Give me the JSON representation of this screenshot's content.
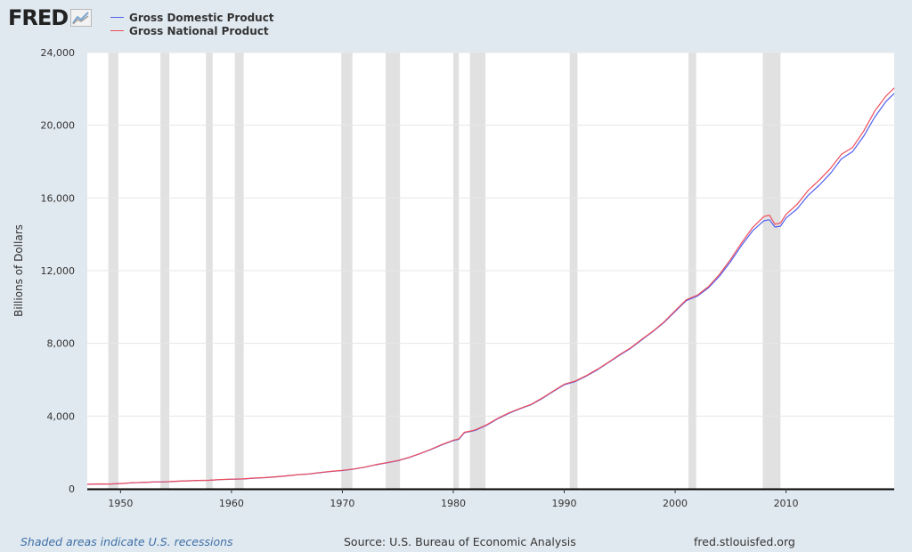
{
  "logo": {
    "text": "FRED",
    "icon": "line-chart-icon"
  },
  "legend": [
    {
      "name": "Gross Domestic Product",
      "color": "#4f5ff0"
    },
    {
      "name": "Gross National Product",
      "color": "#ef4d5a"
    }
  ],
  "footer": {
    "note": "Shaded areas indicate U.S. recessions",
    "source": "Source: U.S. Bureau of Economic Analysis",
    "site": "fred.stlouisfed.org"
  },
  "chart_data": {
    "type": "line",
    "title": "",
    "xlabel": "",
    "ylabel": "Billions of Dollars",
    "xlim": [
      1947,
      2019.75
    ],
    "ylim": [
      0,
      24000
    ],
    "xticks": [
      1950,
      1960,
      1970,
      1980,
      1990,
      2000,
      2010
    ],
    "xtick_labels": [
      "1950",
      "1960",
      "1970",
      "1980",
      "1990",
      "2000",
      "2010"
    ],
    "yticks": [
      0,
      4000,
      8000,
      12000,
      16000,
      20000,
      24000
    ],
    "ytick_labels": [
      "0",
      "4,000",
      "8,000",
      "12,000",
      "16,000",
      "20,000",
      "24,000"
    ],
    "grid": true,
    "recessions": [
      [
        1948.9,
        1949.8
      ],
      [
        1953.6,
        1954.4
      ],
      [
        1957.7,
        1958.3
      ],
      [
        1960.3,
        1961.1
      ],
      [
        1969.9,
        1970.9
      ],
      [
        1973.9,
        1975.2
      ],
      [
        1980.0,
        1980.5
      ],
      [
        1981.5,
        1982.9
      ],
      [
        1990.5,
        1991.2
      ],
      [
        2001.2,
        2001.9
      ],
      [
        2007.9,
        2009.5
      ]
    ],
    "series": [
      {
        "name": "Gross Domestic Product",
        "color": "#4f5ff0",
        "x": [
          1947,
          1948,
          1949,
          1950,
          1951,
          1952,
          1953,
          1954,
          1955,
          1956,
          1957,
          1958,
          1959,
          1960,
          1961,
          1962,
          1963,
          1964,
          1965,
          1966,
          1967,
          1968,
          1969,
          1970,
          1971,
          1972,
          1973,
          1974,
          1975,
          1976,
          1977,
          1978,
          1979,
          1980,
          1980.5,
          1981,
          1981.75,
          1982,
          1983,
          1984,
          1985,
          1986,
          1987,
          1988,
          1989,
          1990,
          1991,
          1992,
          1993,
          1994,
          1995,
          1996,
          1997,
          1998,
          1999,
          2000,
          2001,
          2002,
          2003,
          2004,
          2005,
          2006,
          2007,
          2008,
          2008.5,
          2009,
          2009.5,
          2010,
          2011,
          2012,
          2013,
          2014,
          2015,
          2016,
          2017,
          2018,
          2019,
          2019.75
        ],
        "values": [
          243,
          265,
          262,
          285,
          330,
          350,
          373,
          377,
          412,
          435,
          458,
          464,
          505,
          524,
          541,
          581,
          612,
          654,
          708,
          775,
          812,
          887,
          953,
          1005,
          1081,
          1184,
          1317,
          1424,
          1544,
          1718,
          1928,
          2164,
          2419,
          2649,
          2722,
          3080,
          3180,
          3220,
          3490,
          3850,
          4150,
          4400,
          4620,
          4960,
          5350,
          5720,
          5900,
          6200,
          6550,
          6950,
          7350,
          7730,
          8200,
          8650,
          9150,
          9750,
          10350,
          10600,
          11050,
          11700,
          12500,
          13400,
          14200,
          14750,
          14800,
          14400,
          14450,
          14900,
          15400,
          16150,
          16700,
          17350,
          18150,
          18550,
          19400,
          20450,
          21300,
          21750
        ]
      },
      {
        "name": "Gross National Product",
        "color": "#ef4d5a",
        "x": [
          1947,
          1948,
          1949,
          1950,
          1951,
          1952,
          1953,
          1954,
          1955,
          1956,
          1957,
          1958,
          1959,
          1960,
          1961,
          1962,
          1963,
          1964,
          1965,
          1966,
          1967,
          1968,
          1969,
          1970,
          1971,
          1972,
          1973,
          1974,
          1975,
          1976,
          1977,
          1978,
          1979,
          1980,
          1980.5,
          1981,
          1981.75,
          1982,
          1983,
          1984,
          1985,
          1986,
          1987,
          1988,
          1989,
          1990,
          1991,
          1992,
          1993,
          1994,
          1995,
          1996,
          1997,
          1998,
          1999,
          2000,
          2001,
          2002,
          2003,
          2004,
          2005,
          2006,
          2007,
          2008,
          2008.5,
          2009,
          2009.5,
          2010,
          2011,
          2012,
          2013,
          2014,
          2015,
          2016,
          2017,
          2018,
          2019,
          2019.75
        ],
        "values": [
          245,
          267,
          264,
          287,
          333,
          353,
          376,
          380,
          415,
          438,
          462,
          468,
          509,
          529,
          546,
          586,
          618,
          660,
          714,
          781,
          819,
          894,
          960,
          1012,
          1088,
          1192,
          1326,
          1435,
          1555,
          1730,
          1941,
          2178,
          2440,
          2675,
          2750,
          3110,
          3205,
          3245,
          3515,
          3875,
          4175,
          4420,
          4640,
          4985,
          5380,
          5750,
          5930,
          6230,
          6580,
          6970,
          7380,
          7760,
          8230,
          8670,
          9180,
          9790,
          10400,
          10650,
          11120,
          11800,
          12620,
          13540,
          14380,
          14980,
          15050,
          14550,
          14620,
          15100,
          15650,
          16420,
          16980,
          17620,
          18400,
          18780,
          19680,
          20780,
          21600,
          22050
        ]
      }
    ]
  }
}
